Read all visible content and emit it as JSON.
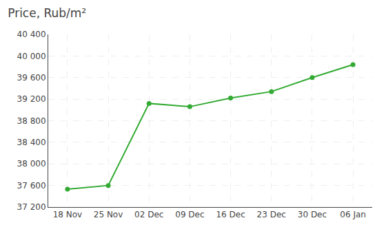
{
  "chart_data": {
    "type": "line",
    "title": "Price, Rub/m²",
    "categories": [
      "18 Nov",
      "25 Nov",
      "02 Dec",
      "09 Dec",
      "16 Dec",
      "23 Dec",
      "30 Dec",
      "06 Jan"
    ],
    "values": [
      37530,
      37600,
      39120,
      39060,
      39220,
      39340,
      39600,
      39840
    ],
    "color": "#33aa33",
    "marker": "circle",
    "ylim": [
      37200,
      40400
    ],
    "yticks": [
      {
        "value": 37200,
        "label": "37 200"
      },
      {
        "value": 37600,
        "label": "37 600"
      },
      {
        "value": 38000,
        "label": "38 000"
      },
      {
        "value": 38400,
        "label": "38 400"
      },
      {
        "value": 38800,
        "label": "38 800"
      },
      {
        "value": 39200,
        "label": "39 200"
      },
      {
        "value": 39600,
        "label": "39 600"
      },
      {
        "value": 40000,
        "label": "40 000"
      },
      {
        "value": 40400,
        "label": "40 400"
      }
    ],
    "grid": true
  }
}
